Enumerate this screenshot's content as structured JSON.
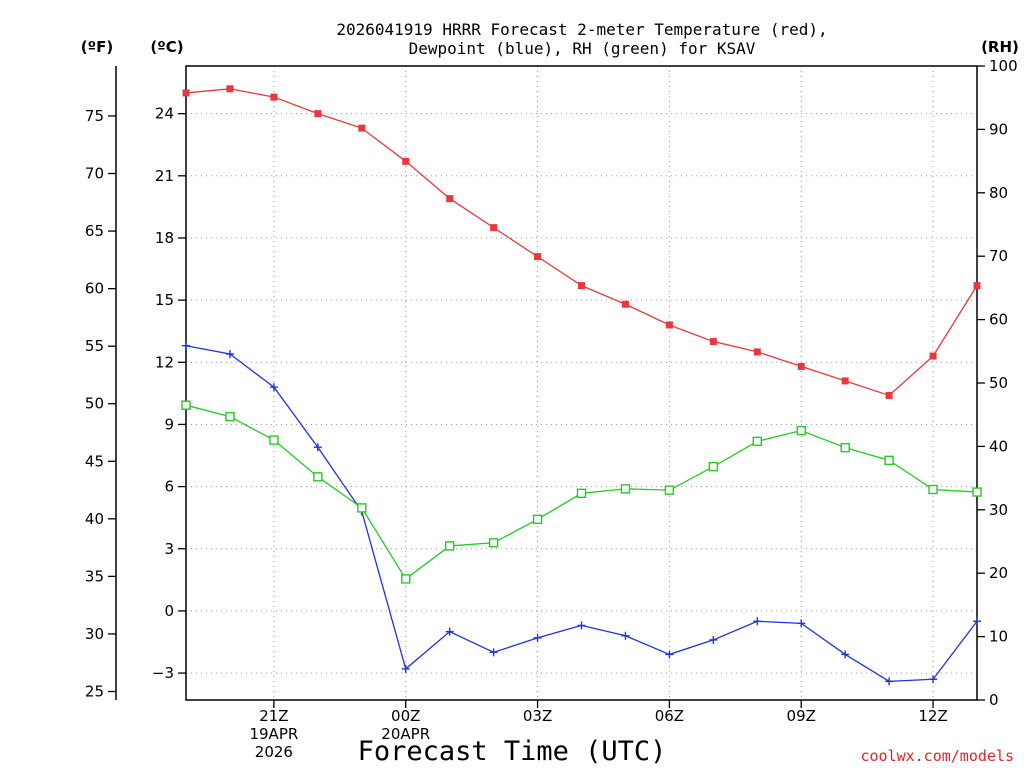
{
  "chart_data": {
    "type": "line",
    "title_line1": "2026041919 HRRR Forecast 2-meter Temperature (red),",
    "title_line2": "Dewpoint (blue), RH (green) for KSAV",
    "unit_f": "(ºF)",
    "unit_c": "(ºC)",
    "unit_rh": "(RH)",
    "xlabel": "Forecast Time (UTC)",
    "credit": "coolwx.com/models",
    "x_hours": [
      19,
      20,
      21,
      22,
      23,
      24,
      25,
      26,
      27,
      28,
      29,
      30,
      31,
      32,
      33,
      34,
      35,
      36,
      37
    ],
    "x_range": [
      19,
      37
    ],
    "x_ticks": [
      {
        "hour": 21,
        "lines": [
          "21Z",
          "19APR",
          "2026"
        ]
      },
      {
        "hour": 24,
        "lines": [
          "00Z",
          "20APR"
        ]
      },
      {
        "hour": 27,
        "lines": [
          "03Z"
        ]
      },
      {
        "hour": 30,
        "lines": [
          "06Z"
        ]
      },
      {
        "hour": 33,
        "lines": [
          "09Z"
        ]
      },
      {
        "hour": 36,
        "lines": [
          "12Z"
        ]
      }
    ],
    "ylim_c": [
      -4.3,
      26.3
    ],
    "ylim_rh": [
      0,
      100
    ],
    "y_ticks_c": [
      "-3",
      "0",
      "3",
      "6",
      "9",
      "12",
      "15",
      "18",
      "21",
      "24"
    ],
    "y_ticks_f": [
      "25",
      "30",
      "35",
      "40",
      "45",
      "50",
      "55",
      "60",
      "65",
      "70",
      "75"
    ],
    "y_ticks_rh": [
      "0",
      "10",
      "20",
      "30",
      "40",
      "50",
      "60",
      "70",
      "80",
      "90",
      "100"
    ],
    "series": [
      {
        "name": "Temperature",
        "axis": "c",
        "color": "#e8383d",
        "marker": "filled-square",
        "values": [
          25.0,
          25.2,
          24.8,
          24.0,
          23.3,
          21.7,
          19.9,
          18.5,
          17.1,
          15.7,
          14.8,
          13.8,
          13.0,
          12.5,
          11.8,
          11.1,
          10.4,
          12.3,
          15.7
        ]
      },
      {
        "name": "Dewpoint",
        "axis": "c",
        "color": "#2233dd",
        "marker": "plus",
        "values": [
          12.8,
          12.4,
          10.8,
          7.9,
          4.8,
          -2.8,
          -1.0,
          -2.0,
          -1.3,
          -0.7,
          -1.2,
          -2.1,
          -1.4,
          -0.5,
          -0.6,
          -2.1,
          -3.4,
          -3.3,
          -0.5
        ]
      },
      {
        "name": "RH",
        "axis": "rh",
        "color": "#22cc22",
        "marker": "open-square",
        "values": [
          46.5,
          44.7,
          41.0,
          35.2,
          30.3,
          19.1,
          24.3,
          24.8,
          28.5,
          32.6,
          33.3,
          33.1,
          36.8,
          40.8,
          42.5,
          39.8,
          37.8,
          33.2,
          32.8
        ]
      }
    ]
  }
}
